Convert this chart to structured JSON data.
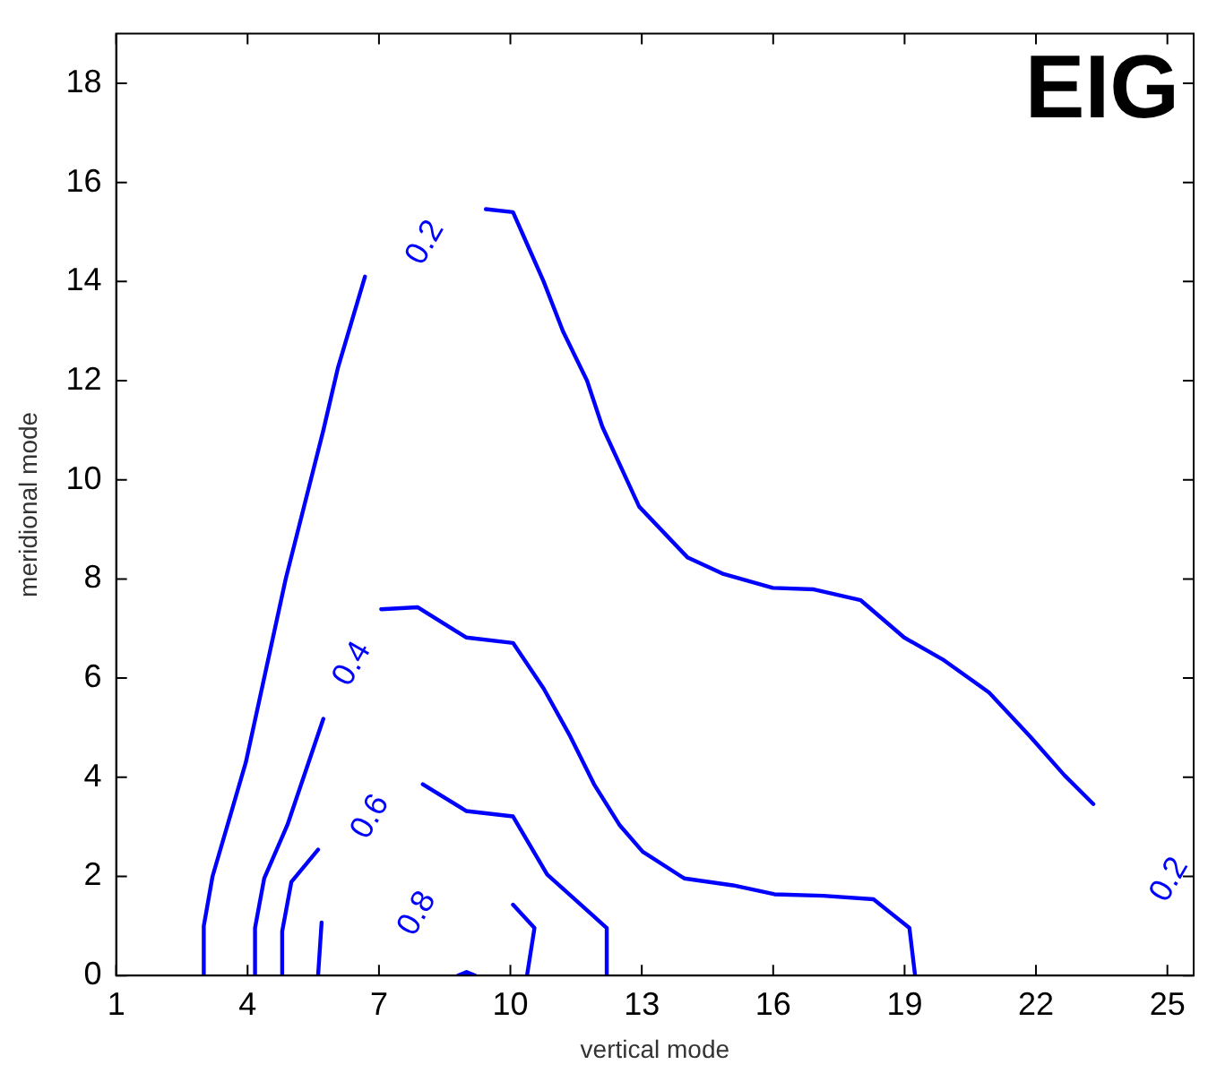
{
  "chart_data": {
    "type": "line",
    "title": "EIG",
    "xlabel": "vertical mode",
    "ylabel": "meridional mode",
    "xlim": [
      1,
      25.6
    ],
    "ylim": [
      0,
      19
    ],
    "xticks": [
      1,
      4,
      7,
      10,
      13,
      16,
      19,
      22,
      25
    ],
    "yticks": [
      0,
      2,
      4,
      6,
      8,
      10,
      12,
      14,
      16,
      18
    ],
    "marker": "none",
    "line_style": "solid",
    "series": [
      {
        "name": "0.2",
        "color": "#0000ff",
        "x": [
          3,
          3,
          3.2,
          3.96,
          4.87,
          5.73,
          6.06,
          6.68,
          null,
          9.44,
          10.06,
          10.26,
          10.76,
          11.2,
          11.75,
          12.1,
          12.94,
          14.05,
          14.87,
          15.99,
          16.93,
          18,
          18.99,
          19.9,
          20.93,
          21.87,
          22.65,
          23.31
        ],
        "values": [
          0,
          1,
          2,
          4.3,
          8,
          11,
          12.25,
          14.1,
          null,
          15.46,
          15.4,
          15,
          14,
          13,
          12,
          11.07,
          9.46,
          8.43,
          8.1,
          7.82,
          7.79,
          7.57,
          6.82,
          6.36,
          5.71,
          4.82,
          4.04,
          3.46
        ]
      },
      {
        "name": "0.4",
        "color": "#0000ff",
        "x": [
          4.17,
          4.17,
          4.38,
          4.91,
          5.73,
          null,
          7.05,
          7.88,
          8.99,
          10.06,
          10.76,
          11.37,
          11.91,
          12.49,
          13.02,
          13.97,
          15.08,
          16.03,
          17.14,
          18.29,
          19.11,
          19.24
        ],
        "values": [
          0,
          0.96,
          1.96,
          3.04,
          5.18,
          null,
          7.39,
          7.43,
          6.82,
          6.71,
          5.79,
          4.82,
          3.86,
          3.04,
          2.5,
          1.96,
          1.82,
          1.64,
          1.61,
          1.54,
          0.96,
          0
        ]
      },
      {
        "name": "0.6",
        "color": "#0000ff",
        "x": [
          4.79,
          4.79,
          5,
          5.61,
          null,
          8,
          8.99,
          10.06,
          10.84,
          12.2,
          12.2
        ],
        "values": [
          0,
          0.89,
          1.89,
          2.54,
          null,
          3.86,
          3.32,
          3.21,
          2.04,
          0.96,
          0
        ]
      },
      {
        "name": "0.8",
        "color": "#0000ff",
        "x": [
          5.61,
          5.69,
          null,
          10.06,
          10.55,
          10.38
        ],
        "values": [
          0,
          1.07,
          null,
          1.43,
          0.96,
          0
        ]
      },
      {
        "color": "#0000ff",
        "x": [
          8.8,
          9,
          9.2
        ],
        "values": [
          0,
          0.07,
          0
        ]
      }
    ]
  }
}
